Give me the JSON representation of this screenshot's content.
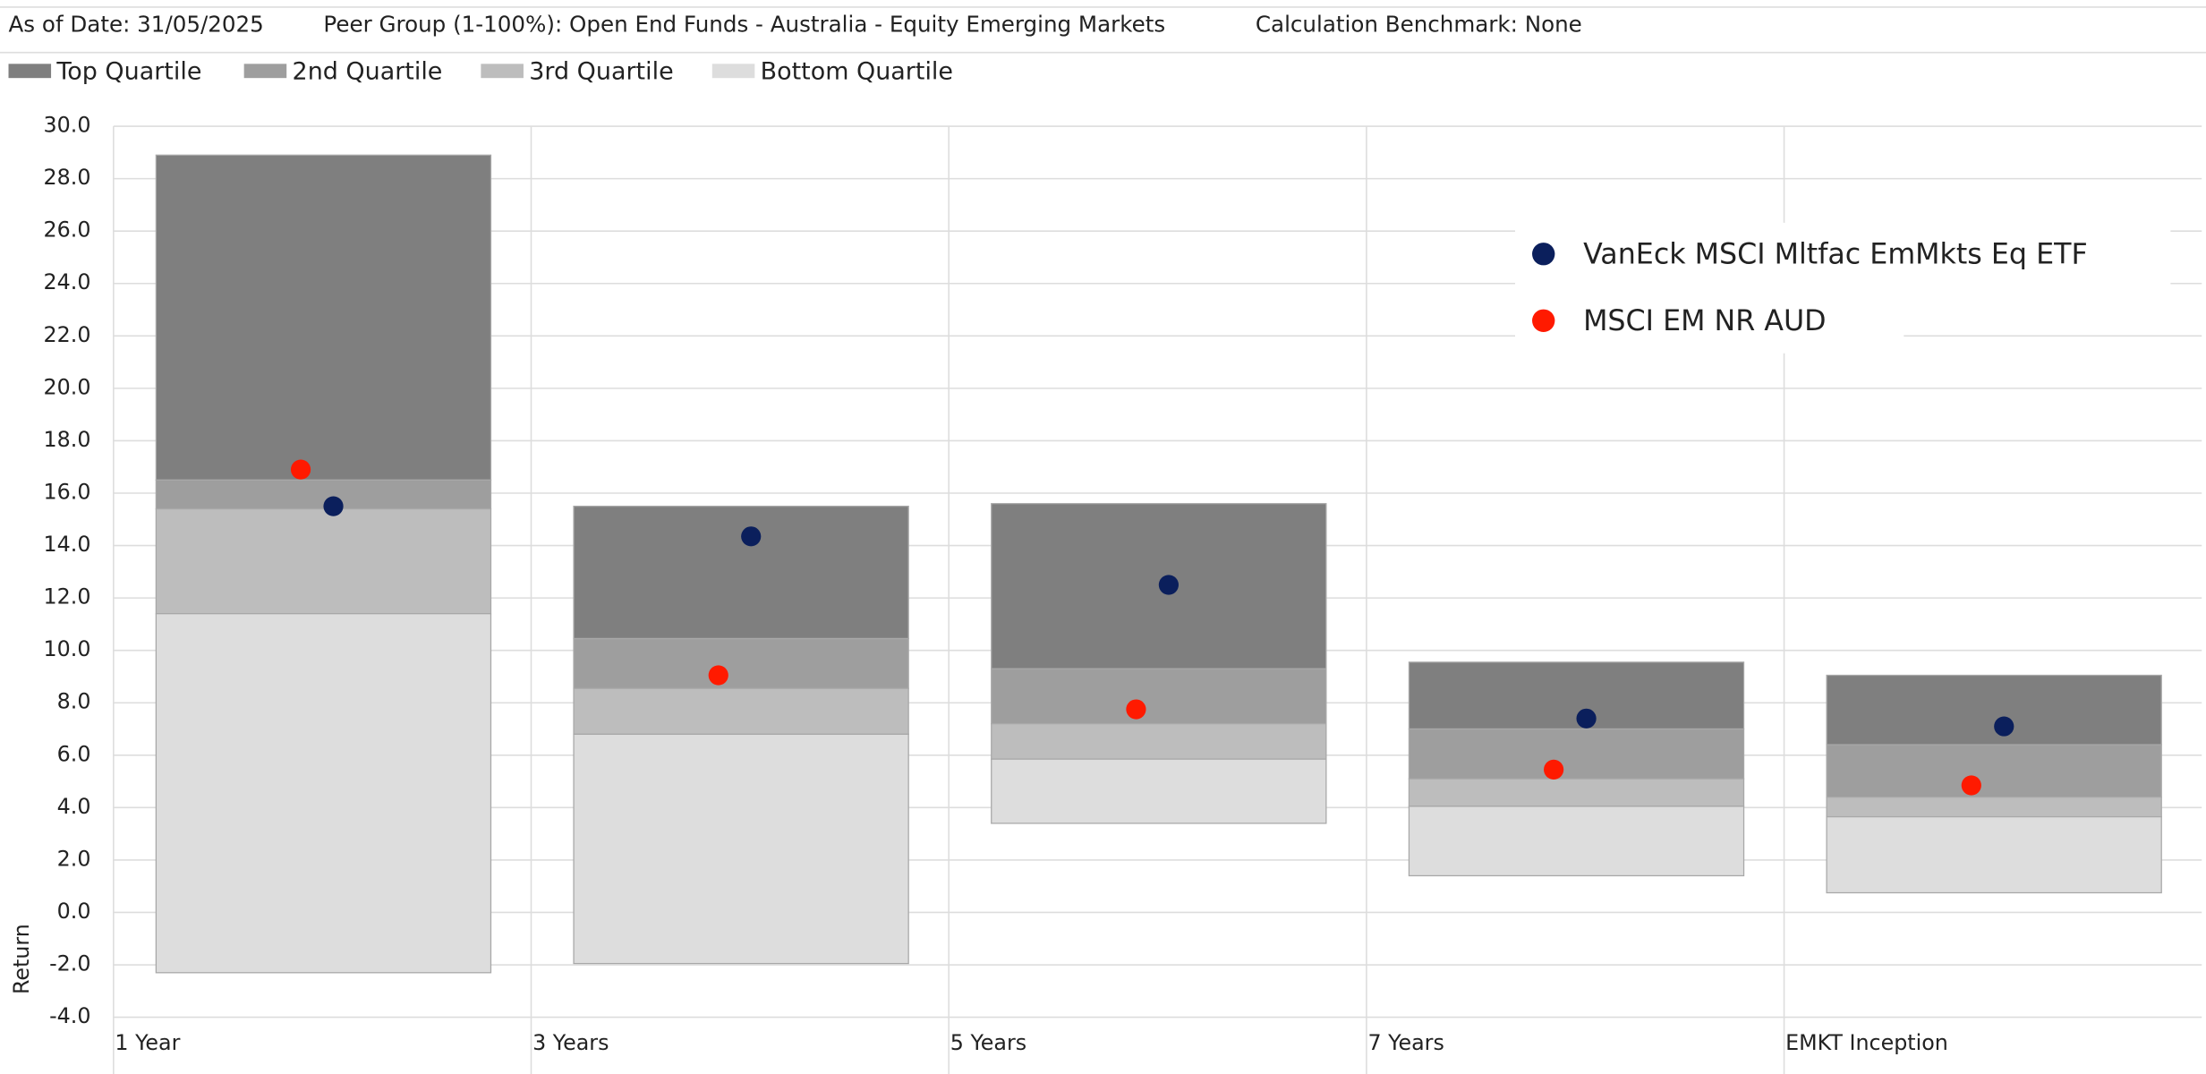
{
  "header": {
    "items": [
      "As of Date: 31/05/2025",
      "Peer Group (1-100%): Open End Funds - Australia - Equity Emerging Markets",
      "Calculation Benchmark: None"
    ]
  },
  "chart_data": {
    "type": "quartile",
    "y_label": "Return",
    "categories": [
      "1 Year",
      "3 Years",
      "5 Years",
      "7 Years",
      "EMKT Inception"
    ],
    "quartiles": [
      {
        "name": "Top Quartile",
        "color": "#7f7f7f",
        "values": [
          [
            16.5,
            28.9
          ],
          [
            10.45,
            15.5
          ],
          [
            9.3,
            15.6
          ],
          [
            7.0,
            9.55
          ],
          [
            6.4,
            9.05
          ]
        ]
      },
      {
        "name": "2nd Quartile",
        "color": "#9e9e9e",
        "values": [
          [
            15.4,
            16.5
          ],
          [
            8.55,
            10.45
          ],
          [
            7.2,
            9.3
          ],
          [
            5.1,
            7.0
          ],
          [
            4.4,
            6.4
          ]
        ]
      },
      {
        "name": "3rd Quartile",
        "color": "#bdbdbd",
        "values": [
          [
            11.4,
            15.4
          ],
          [
            6.8,
            8.55
          ],
          [
            5.85,
            7.2
          ],
          [
            4.05,
            5.1
          ],
          [
            3.65,
            4.4
          ]
        ]
      },
      {
        "name": "Bottom Quartile",
        "color": "#dddddd",
        "values": [
          [
            -2.3,
            11.4
          ],
          [
            -1.95,
            6.8
          ],
          [
            3.4,
            5.85
          ],
          [
            1.4,
            4.05
          ],
          [
            0.75,
            3.65
          ]
        ]
      }
    ],
    "series": [
      {
        "name": "VanEck MSCI Mltfac EmMkts Eq ETF",
        "color": "#0b1f5c",
        "values": [
          15.5,
          14.35,
          12.5,
          7.4,
          7.1
        ]
      },
      {
        "name": "MSCI EM NR AUD",
        "color": "#ff1a00",
        "values": [
          16.9,
          9.05,
          7.75,
          5.45,
          4.85
        ]
      }
    ],
    "ylim": [
      -4,
      30
    ],
    "yticks": [
      {
        "value": -4,
        "label": "-4.0"
      },
      {
        "value": -2,
        "label": "-2.0"
      },
      {
        "value": 0,
        "label": "0.0"
      },
      {
        "value": 2,
        "label": "2.0"
      },
      {
        "value": 4,
        "label": "4.0"
      },
      {
        "value": 6,
        "label": "6.0"
      },
      {
        "value": 8,
        "label": "8.0"
      },
      {
        "value": 10,
        "label": "10.0"
      },
      {
        "value": 12,
        "label": "12.0"
      },
      {
        "value": 14,
        "label": "14.0"
      },
      {
        "value": 16,
        "label": "16.0"
      },
      {
        "value": 18,
        "label": "18.0"
      },
      {
        "value": 20,
        "label": "20.0"
      },
      {
        "value": 22,
        "label": "22.0"
      },
      {
        "value": 24,
        "label": "24.0"
      },
      {
        "value": 26,
        "label": "26.0"
      },
      {
        "value": 28,
        "label": "28.0"
      },
      {
        "value": 30,
        "label": "30.0"
      }
    ],
    "grid": true
  }
}
